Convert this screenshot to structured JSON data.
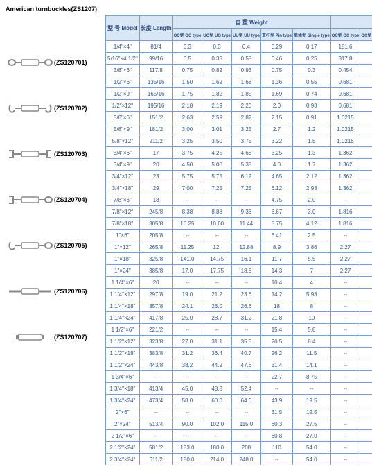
{
  "page_title": "American turnbuckles(ZS1207)",
  "products": [
    {
      "id": "(ZS120701)"
    },
    {
      "id": "(ZS120702)"
    },
    {
      "id": "(ZS120703)"
    },
    {
      "id": "(ZS120704)"
    },
    {
      "id": "(ZS120705)"
    },
    {
      "id": "(ZS120706)"
    },
    {
      "id": "(ZS120707)"
    }
  ],
  "headers": {
    "model": "型 号\nModel",
    "length": "长度\nLength",
    "weight_group": "自   重   Weight",
    "wll_group": "极限工作力WLL",
    "oc": "OC型\nOC type",
    "uo": "UO型\nUO type",
    "uu": "UU型\nUU type",
    "pin": "直杆型\nPin type",
    "single": "单体型\nSingle type",
    "wll_oc": "OC型\nOC type",
    "wll_other": "OC型 OOtype\nUO型 UOtype\nUU型 UUtype\n直杆型 Pintype"
  },
  "rows": [
    [
      "1/4\"×4\"",
      "81/4",
      "0.3",
      "0.3",
      "0.4",
      "0.29",
      "0.17",
      "181.6",
      "227"
    ],
    [
      "5/16\"×4 1/2\"",
      "99/16",
      "0.5",
      "0.35",
      "0.58",
      "0.46",
      "0.25",
      "317.8",
      "363.2"
    ],
    [
      "3/8\"×6\"",
      "117/8",
      "0.75",
      "0.82",
      "0.93",
      "0.75",
      "0.3",
      "0.454",
      "5.448"
    ],
    [
      "1/2\"×6\"",
      "135/16",
      "1.50",
      "1.62",
      "1.68",
      "1.36",
      "0.55",
      "0.681",
      "0.9988"
    ],
    [
      "1/2\"×9\"",
      "165/16",
      "1.75",
      "1.82",
      "1.85",
      "1.69",
      "0.74",
      "0.681",
      "0.9988"
    ],
    [
      "1/2\"×12\"",
      "195/16",
      "2.18",
      "2.19",
      "2.20",
      "2.0",
      "0.93",
      "0.681",
      "0.9988"
    ],
    [
      "5/8\"×6\"",
      "151/2",
      "2.63",
      "2.59",
      "2.82",
      "2.15",
      "0.91",
      "1.0215",
      "1.589"
    ],
    [
      "5/8\"×9\"",
      "181/2",
      "3.00",
      "3.01",
      "3.25",
      "2.7",
      "1.2",
      "1.0215",
      "1.589"
    ],
    [
      "5/8\"×12\"",
      "211/2",
      "3.25",
      "3.50",
      "3.75",
      "3.22",
      "1.5",
      "1.0215",
      "1.589"
    ],
    [
      "3/4\"×6\"",
      "17",
      "3.75",
      "4.25",
      "4.68",
      "3.25",
      "1.3",
      "1.362",
      "2.3608"
    ],
    [
      "3/4\"×9\"",
      "20",
      "4.50",
      "5.00",
      "5.38",
      "4.0",
      "1.7",
      "1.362",
      "2.3608"
    ],
    [
      "3/4\"×12\"",
      "23",
      "5.75",
      "5.75",
      "6.12",
      "4.65",
      "2.12",
      "1.362",
      "2.3608"
    ],
    [
      "3/4\"×18\"",
      "29",
      "7.00",
      "7.25",
      "7.25",
      "6.12",
      "2.93",
      "1.362",
      "2.3608"
    ],
    [
      "7/8\"×6\"",
      "18",
      "--",
      "--",
      "--",
      "4.75",
      "2.0",
      "--",
      "3.2688"
    ],
    [
      "7/8\"×12\"",
      "245/8",
      "8.38",
      "8.88",
      "9.36",
      "6.67",
      "3.0",
      "1.816",
      "3.2688"
    ],
    [
      "7/8\"×18\"",
      "305/8",
      "10.25",
      "10.60",
      "11.44",
      "8.75",
      "4.12",
      "1.816",
      "3.2688"
    ],
    [
      "1\"×6\"",
      "205/8",
      "--",
      "--",
      "--",
      "6.41",
      "2.5",
      "--",
      "4.54"
    ],
    [
      "1\"×12\"",
      "265/8",
      "11.25",
      "12.",
      "12.88",
      "8.9",
      "3.86",
      "2.27",
      "4.54"
    ],
    [
      "1\"×18\"",
      "325/8",
      "141.0",
      "14.75",
      "16.1",
      "11.7",
      "5.5",
      "2.27",
      "4.54"
    ],
    [
      "1\"×24\"",
      "385/8",
      "17.0",
      "17.75",
      "18.6",
      "14.3",
      "7",
      "2.27",
      "4.54"
    ],
    [
      "1 1/4\"×6\"",
      "20",
      "--",
      "--",
      "--",
      "10.4",
      "4",
      "--",
      "6.9008"
    ],
    [
      "1 1/4\"×12\"",
      "297/8",
      "19.0",
      "21.2",
      "23.6",
      "14.2",
      "5.93",
      "--",
      "6.9008"
    ],
    [
      "1 1/4\"×18\"",
      "357/8",
      "24.1",
      "26.0",
      "26.6",
      "18",
      "8",
      "--",
      "6.9008"
    ],
    [
      "1 1/4\"×24\"",
      "417/8",
      "25.0",
      "28.7",
      "31.2",
      "21.8",
      "10",
      "--",
      "6.9008"
    ],
    [
      "1 1/2\"×6\"",
      "221/2",
      "--",
      "--",
      "--",
      "15.4",
      "5.8",
      "--",
      "9.7158"
    ],
    [
      "1 1/2\"×12\"",
      "323/8",
      "27.0",
      "31.1",
      "35.5",
      "20.5",
      "8.4",
      "--",
      "9.7158"
    ],
    [
      "1 1/2\"×18\"",
      "383/8",
      "31.2",
      "36.4",
      "40.7",
      "26.2",
      "11.5",
      "--",
      "9.7158"
    ],
    [
      "1 1/2\"×24\"",
      "443/8",
      "38.2",
      "44.2",
      "47.6",
      "31.4",
      "14.1",
      "--",
      "9.7158"
    ],
    [
      "1 3/4\"×6\"",
      "--",
      "--",
      "--",
      "--",
      "22.7",
      "8.75",
      "--",
      "12.712"
    ],
    [
      "1 3/4\"×18\"",
      "413/4",
      "45.0",
      "48.8",
      "52.4",
      "--",
      "--",
      "--",
      "12.712"
    ],
    [
      "1 3/4\"×24\"",
      "473/4",
      "58.0",
      "60.0",
      "64.0",
      "43.9",
      "19.5",
      "--",
      "12.712"
    ],
    [
      "2\"×6\"",
      "--",
      "--",
      "--",
      "--",
      "31.5",
      "12.5",
      "--",
      "16.798"
    ],
    [
      "2\"×24\"",
      "513/4",
      "90.0",
      "102.0",
      "115.0",
      "60.3",
      "27.5",
      "--",
      "16.798"
    ],
    [
      "2 1/2\"×6\"",
      "--",
      "--",
      "--",
      "--",
      "60.8",
      "27.0",
      "--",
      "27.24"
    ],
    [
      "2 1/2\"×24\"",
      "581/2",
      "183.0",
      "180.0",
      "200",
      "110",
      "54.0",
      "--",
      "27.24"
    ],
    [
      "2 3/4\"×24\"",
      "611/2",
      "180.0",
      "214.0",
      "248.0",
      "--",
      "54.0",
      "--",
      "34.05"
    ]
  ]
}
